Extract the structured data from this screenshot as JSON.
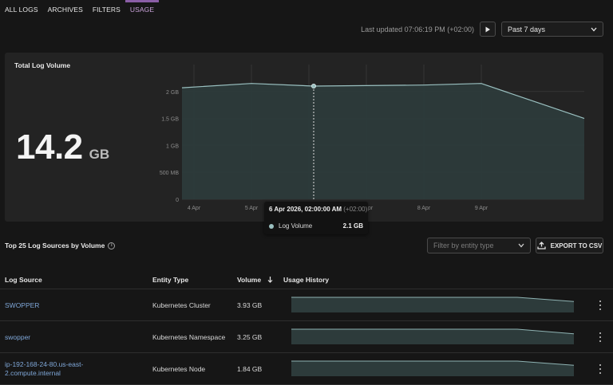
{
  "tabs": [
    {
      "label": "ALL LOGS",
      "active": false
    },
    {
      "label": "ARCHIVES",
      "active": false
    },
    {
      "label": "FILTERS",
      "active": false
    },
    {
      "label": "USAGE",
      "active": true
    }
  ],
  "toolbar": {
    "last_updated": "Last updated 07:06:19 PM (+02:00)",
    "play_icon": "play-icon",
    "range": "Past 7 days",
    "range_icon": "chevron-down-icon"
  },
  "volume_panel": {
    "title": "Total Log Volume",
    "big_number": "14.2",
    "big_unit": "GB"
  },
  "chart_data": {
    "type": "area",
    "title": "Total Log Volume",
    "x_dates": [
      "3 Apr 2026 19:00",
      "5 Apr 2026 00:00",
      "6 Apr 2026 02:00",
      "8 Apr 2026 00:00",
      "9 Apr 2026 00:00",
      "10 Apr 2026 19:00"
    ],
    "values_gb": [
      2.07,
      2.15,
      2.1,
      2.12,
      2.15,
      1.5
    ],
    "x_tick_labels": [
      "4 Apr",
      "5 Apr",
      "6 Apr",
      "7 Apr",
      "8 Apr",
      "9 Apr"
    ],
    "y_tick_labels": [
      "0",
      "500 MB",
      "1 GB",
      "1.5 GB",
      "2 GB"
    ],
    "ylim_gb": [
      0,
      2.5
    ],
    "grid": true,
    "series": [
      {
        "name": "Log Volume",
        "color": "#9ac0c0"
      }
    ],
    "highlight_index": 2
  },
  "tooltip": {
    "date": "6 Apr 2026, 02:00:00 AM",
    "tz": "(+02:00)",
    "series_label": "Log Volume",
    "value": "2.1 GB"
  },
  "sources": {
    "title": "Top 25 Log Sources by Volume",
    "info_icon": "info-icon",
    "filter_placeholder": "Filter by entity type",
    "export_label": "EXPORT TO CSV",
    "export_icon": "upload-icon",
    "columns": [
      "Log Source",
      "Entity Type",
      "Volume",
      "Usage History"
    ],
    "sort_icon": "sort-icon",
    "rows": [
      {
        "source": "SWOPPER",
        "entity_type": "Kubernetes Cluster",
        "volume": "3.93 GB",
        "history": [
          1.0,
          1.0,
          1.0,
          1.0,
          1.0,
          0.72
        ]
      },
      {
        "source": "swopper",
        "entity_type": "Kubernetes Namespace",
        "volume": "3.25 GB",
        "history": [
          1.0,
          1.0,
          1.0,
          1.0,
          1.0,
          0.7
        ]
      },
      {
        "source": "ip-192-168-24-80.us-east-2.compute.internal",
        "entity_type": "Kubernetes Node",
        "volume": "1.84 GB",
        "history": [
          1.0,
          1.0,
          1.0,
          1.0,
          1.0,
          0.72
        ]
      }
    ]
  }
}
